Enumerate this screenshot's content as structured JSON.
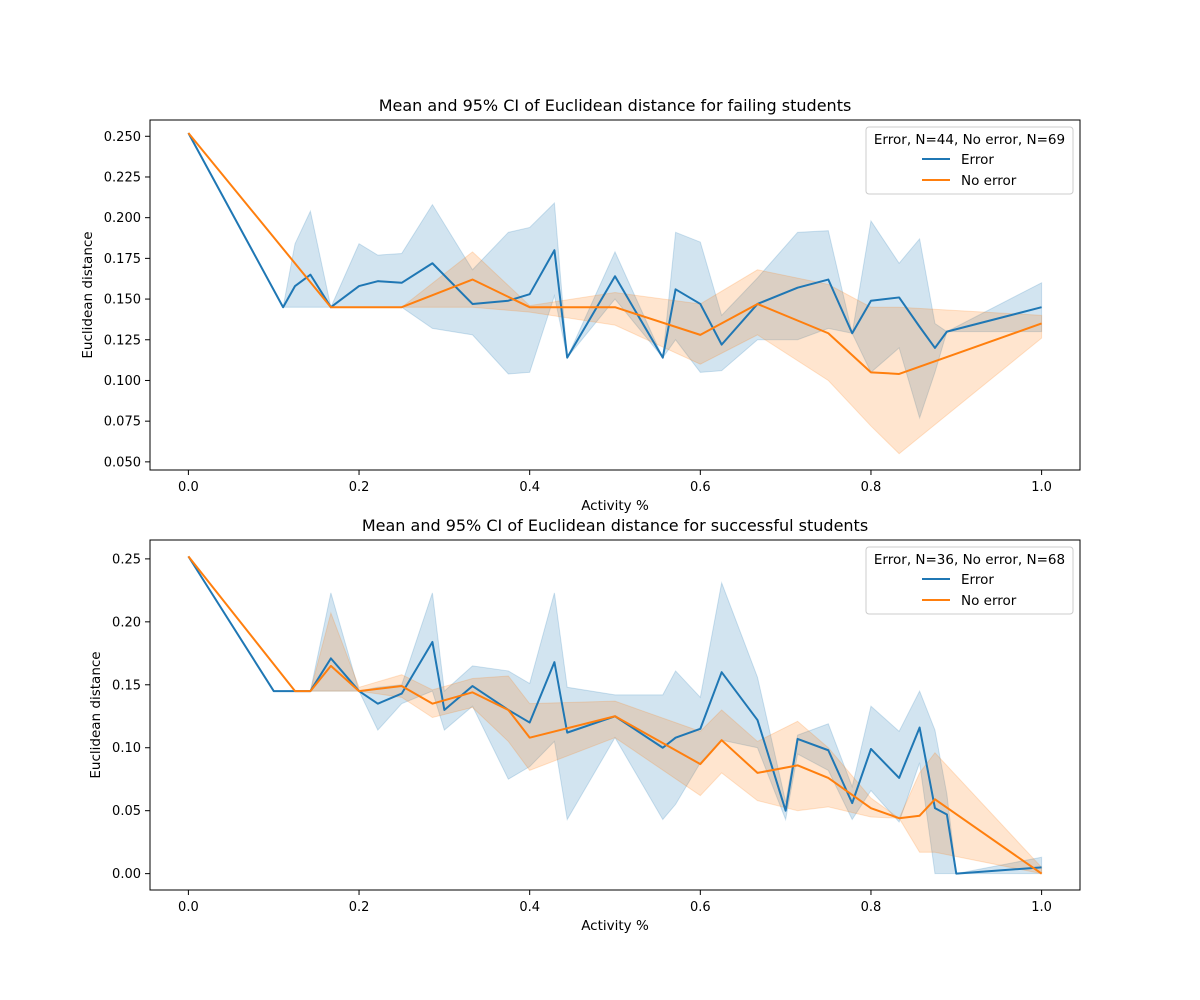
{
  "chart_data": [
    {
      "type": "line",
      "title": "Mean and 95% CI of Euclidean distance for failing students",
      "xlabel": "Activity %",
      "ylabel": "Euclidean distance",
      "xlim": [
        -0.045,
        1.045
      ],
      "ylim": [
        0.045,
        0.26
      ],
      "xticks": [
        0.0,
        0.2,
        0.4,
        0.6,
        0.8,
        1.0
      ],
      "xtick_labels": [
        "0.0",
        "0.2",
        "0.4",
        "0.6",
        "0.8",
        "1.0"
      ],
      "yticks": [
        0.05,
        0.075,
        0.1,
        0.125,
        0.15,
        0.175,
        0.2,
        0.225,
        0.25
      ],
      "ytick_labels": [
        "0.050",
        "0.075",
        "0.100",
        "0.125",
        "0.150",
        "0.175",
        "0.200",
        "0.225",
        "0.250"
      ],
      "grid": false,
      "legend": {
        "placement": "upper right",
        "title": "Error, N=44, No error, N=69",
        "entries": [
          "Error",
          "No error"
        ]
      },
      "series": [
        {
          "name": "Error",
          "color": "#1f77b4",
          "x": [
            0.0,
            0.111,
            0.125,
            0.143,
            0.167,
            0.2,
            0.222,
            0.25,
            0.286,
            0.333,
            0.375,
            0.4,
            0.429,
            0.444,
            0.5,
            0.556,
            0.571,
            0.6,
            0.625,
            0.667,
            0.714,
            0.75,
            0.778,
            0.8,
            0.833,
            0.857,
            0.875,
            0.889,
            1.0
          ],
          "y": [
            0.252,
            0.145,
            0.158,
            0.165,
            0.145,
            0.158,
            0.161,
            0.16,
            0.172,
            0.147,
            0.149,
            0.153,
            0.18,
            0.114,
            0.164,
            0.114,
            0.156,
            0.147,
            0.122,
            0.147,
            0.157,
            0.162,
            0.129,
            0.149,
            0.151,
            0.133,
            0.12,
            0.13,
            0.145
          ],
          "ci_low": [
            0.252,
            0.145,
            0.145,
            0.145,
            0.145,
            0.145,
            0.145,
            0.145,
            0.132,
            0.128,
            0.104,
            0.105,
            0.152,
            0.114,
            0.15,
            0.114,
            0.125,
            0.105,
            0.106,
            0.125,
            0.125,
            0.132,
            0.129,
            0.105,
            0.12,
            0.077,
            0.105,
            0.13,
            0.13
          ],
          "ci_high": [
            0.252,
            0.145,
            0.184,
            0.204,
            0.145,
            0.184,
            0.177,
            0.178,
            0.208,
            0.168,
            0.191,
            0.194,
            0.209,
            0.114,
            0.179,
            0.114,
            0.191,
            0.185,
            0.14,
            0.163,
            0.191,
            0.192,
            0.129,
            0.198,
            0.172,
            0.187,
            0.135,
            0.13,
            0.16
          ]
        },
        {
          "name": "No error",
          "color": "#ff7f0e",
          "x": [
            0.0,
            0.167,
            0.25,
            0.333,
            0.4,
            0.5,
            0.6,
            0.667,
            0.75,
            0.8,
            0.833,
            1.0
          ],
          "y": [
            0.252,
            0.145,
            0.145,
            0.162,
            0.145,
            0.145,
            0.128,
            0.147,
            0.129,
            0.105,
            0.104,
            0.135
          ],
          "ci_low": [
            0.252,
            0.145,
            0.145,
            0.145,
            0.142,
            0.134,
            0.11,
            0.128,
            0.1,
            0.072,
            0.055,
            0.126
          ],
          "ci_high": [
            0.252,
            0.145,
            0.145,
            0.179,
            0.146,
            0.154,
            0.147,
            0.168,
            0.159,
            0.145,
            0.145,
            0.14
          ]
        }
      ]
    },
    {
      "type": "line",
      "title": "Mean and 95% CI of Euclidean distance for successful students",
      "xlabel": "Activity %",
      "ylabel": "Euclidean distance",
      "xlim": [
        -0.045,
        1.045
      ],
      "ylim": [
        -0.013,
        0.265
      ],
      "xticks": [
        0.0,
        0.2,
        0.4,
        0.6,
        0.8,
        1.0
      ],
      "xtick_labels": [
        "0.0",
        "0.2",
        "0.4",
        "0.6",
        "0.8",
        "1.0"
      ],
      "yticks": [
        0.0,
        0.05,
        0.1,
        0.15,
        0.2,
        0.25
      ],
      "ytick_labels": [
        "0.00",
        "0.05",
        "0.10",
        "0.15",
        "0.20",
        "0.25"
      ],
      "grid": false,
      "legend": {
        "placement": "upper right",
        "title": "Error, N=36, No error, N=68",
        "entries": [
          "Error",
          "No error"
        ]
      },
      "series": [
        {
          "name": "Error",
          "color": "#1f77b4",
          "x": [
            0.0,
            0.1,
            0.143,
            0.167,
            0.2,
            0.222,
            0.25,
            0.286,
            0.3,
            0.333,
            0.375,
            0.4,
            0.429,
            0.444,
            0.5,
            0.556,
            0.571,
            0.6,
            0.625,
            0.667,
            0.7,
            0.714,
            0.75,
            0.778,
            0.8,
            0.833,
            0.857,
            0.875,
            0.889,
            0.9,
            1.0
          ],
          "y": [
            0.252,
            0.145,
            0.145,
            0.171,
            0.145,
            0.135,
            0.143,
            0.184,
            0.13,
            0.149,
            0.13,
            0.12,
            0.168,
            0.112,
            0.125,
            0.1,
            0.108,
            0.115,
            0.16,
            0.122,
            0.05,
            0.107,
            0.098,
            0.056,
            0.099,
            0.076,
            0.116,
            0.052,
            0.047,
            0.0,
            0.005
          ],
          "ci_low": [
            0.252,
            0.145,
            0.145,
            0.145,
            0.145,
            0.114,
            0.135,
            0.145,
            0.114,
            0.133,
            0.075,
            0.085,
            0.105,
            0.043,
            0.108,
            0.043,
            0.055,
            0.088,
            0.106,
            0.1,
            0.043,
            0.095,
            0.082,
            0.043,
            0.066,
            0.041,
            0.088,
            0.0,
            0.0,
            0.0,
            0.0
          ],
          "ci_high": [
            0.252,
            0.145,
            0.145,
            0.223,
            0.145,
            0.148,
            0.15,
            0.223,
            0.145,
            0.165,
            0.161,
            0.151,
            0.223,
            0.148,
            0.142,
            0.142,
            0.161,
            0.14,
            0.231,
            0.156,
            0.057,
            0.11,
            0.119,
            0.069,
            0.133,
            0.113,
            0.145,
            0.114,
            0.063,
            0.0,
            0.013
          ]
        },
        {
          "name": "No error",
          "color": "#ff7f0e",
          "x": [
            0.0,
            0.125,
            0.143,
            0.167,
            0.2,
            0.25,
            0.286,
            0.333,
            0.375,
            0.4,
            0.5,
            0.6,
            0.625,
            0.667,
            0.714,
            0.75,
            0.8,
            0.833,
            0.857,
            0.875,
            1.0
          ],
          "y": [
            0.252,
            0.145,
            0.145,
            0.165,
            0.145,
            0.149,
            0.135,
            0.144,
            0.13,
            0.108,
            0.125,
            0.087,
            0.106,
            0.08,
            0.086,
            0.076,
            0.052,
            0.044,
            0.046,
            0.059,
            0.0
          ],
          "ci_low": [
            0.252,
            0.145,
            0.145,
            0.145,
            0.145,
            0.14,
            0.124,
            0.132,
            0.105,
            0.082,
            0.108,
            0.062,
            0.08,
            0.058,
            0.05,
            0.053,
            0.045,
            0.044,
            0.017,
            0.017,
            0.0
          ],
          "ci_high": [
            0.252,
            0.145,
            0.145,
            0.207,
            0.148,
            0.158,
            0.146,
            0.155,
            0.157,
            0.135,
            0.137,
            0.113,
            0.13,
            0.105,
            0.121,
            0.1,
            0.06,
            0.044,
            0.08,
            0.096,
            0.005
          ]
        }
      ]
    }
  ]
}
